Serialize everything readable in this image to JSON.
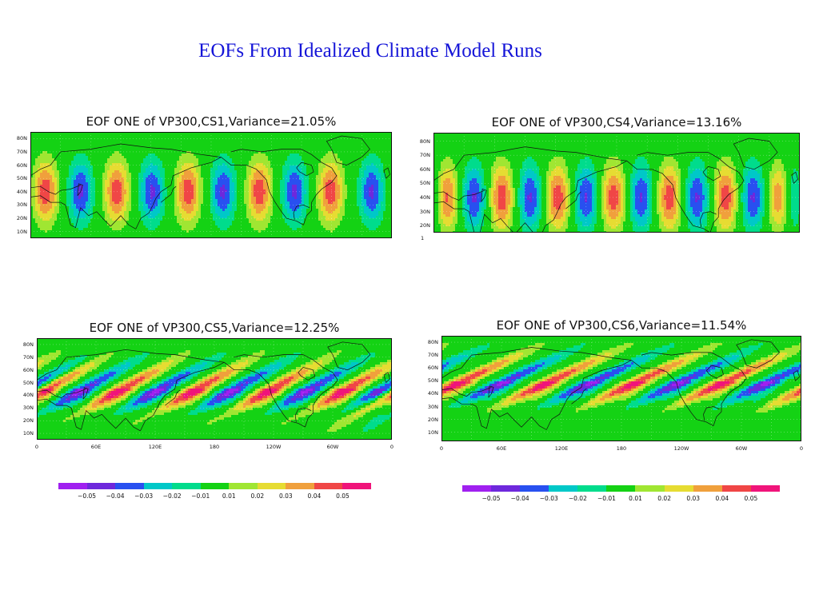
{
  "slide": {
    "title": "EOFs From  Idealized Climate Model Runs"
  },
  "colorbar": {
    "colors": [
      "#a020f0",
      "#6e28dc",
      "#2850f0",
      "#00c8c8",
      "#00dc8c",
      "#14d214",
      "#a0e632",
      "#e6dc32",
      "#f0a03c",
      "#f04646",
      "#f0147a"
    ],
    "labels": [
      "−0.05",
      "−0.04",
      "−0.03",
      "−0.02",
      "−0.01",
      "0.01",
      "0.02",
      "0.03",
      "0.04",
      "0.05"
    ]
  },
  "chart_data": [
    {
      "type": "heatmap",
      "title": "EOF ONE  of VP300,CS1,Variance=21.05%",
      "field": "VP300 EOF ONE",
      "experiment": "CS1",
      "variance_percent": 21.05,
      "y_tick_labels": [
        "80N",
        "70N",
        "60N",
        "50N",
        "40N",
        "30N",
        "20N",
        "10N"
      ],
      "x_tick_labels": [],
      "extra_label": "",
      "pattern": {
        "center_lat": 40,
        "tilt": 0,
        "centers": [
          {
            "lon": 15,
            "sign": 1,
            "amp": 0.045
          },
          {
            "lon": 50,
            "sign": -1,
            "amp": 0.04
          },
          {
            "lon": 86,
            "sign": 1,
            "amp": 0.045
          },
          {
            "lon": 121,
            "sign": -1,
            "amp": 0.04
          },
          {
            "lon": 157,
            "sign": 1,
            "amp": 0.045
          },
          {
            "lon": 192,
            "sign": -1,
            "amp": 0.04
          },
          {
            "lon": 228,
            "sign": 1,
            "amp": 0.045
          },
          {
            "lon": 263,
            "sign": -1,
            "amp": 0.04
          },
          {
            "lon": 299,
            "sign": 1,
            "amp": 0.045
          },
          {
            "lon": 340,
            "sign": -1,
            "amp": 0.04
          }
        ]
      }
    },
    {
      "type": "heatmap",
      "title": "EOF ONE  of VP300,CS4,Variance=13.16%",
      "field": "VP300 EOF ONE",
      "experiment": "CS4",
      "variance_percent": 13.16,
      "y_tick_labels": [
        "80N",
        "70N",
        "60N",
        "50N",
        "40N",
        "30N",
        "20N"
      ],
      "x_tick_labels": [],
      "extra_label": "1",
      "pattern": {
        "center_lat": 40,
        "tilt": 0,
        "centers": [
          {
            "lon": 12,
            "sign": 1,
            "amp": 0.045
          },
          {
            "lon": 40,
            "sign": -1,
            "amp": 0.04
          },
          {
            "lon": 67,
            "sign": 1,
            "amp": 0.045
          },
          {
            "lon": 95,
            "sign": -1,
            "amp": 0.04
          },
          {
            "lon": 122,
            "sign": 1,
            "amp": 0.045
          },
          {
            "lon": 150,
            "sign": -1,
            "amp": 0.04
          },
          {
            "lon": 177,
            "sign": 1,
            "amp": 0.045
          },
          {
            "lon": 204,
            "sign": -1,
            "amp": 0.04
          },
          {
            "lon": 232,
            "sign": 1,
            "amp": 0.045
          },
          {
            "lon": 259,
            "sign": -1,
            "amp": 0.04
          },
          {
            "lon": 287,
            "sign": 1,
            "amp": 0.045
          },
          {
            "lon": 314,
            "sign": -1,
            "amp": 0.04
          },
          {
            "lon": 341,
            "sign": 1,
            "amp": 0.045
          },
          {
            "lon": 355,
            "sign": -1,
            "amp": 0.04
          }
        ]
      }
    },
    {
      "type": "heatmap",
      "title": "EOF ONE  of VP300,CS5,Variance=12.25%",
      "field": "VP300 EOF ONE",
      "experiment": "CS5",
      "variance_percent": 12.25,
      "y_tick_labels": [
        "80N",
        "70N",
        "60N",
        "50N",
        "40N",
        "30N",
        "20N",
        "10N"
      ],
      "x_tick_labels": [
        "0",
        "60E",
        "120E",
        "180",
        "120W",
        "60W",
        "0"
      ],
      "extra_label": "",
      "pattern": {
        "center_lat": 45,
        "tilt": 2.5,
        "centers": [
          {
            "lon": 10,
            "sign": 1,
            "amp": 0.045
          },
          {
            "lon": 48,
            "sign": -1,
            "amp": 0.04
          },
          {
            "lon": 87,
            "sign": 1,
            "amp": 0.045
          },
          {
            "lon": 125,
            "sign": -1,
            "amp": 0.04
          },
          {
            "lon": 163,
            "sign": 1,
            "amp": 0.045
          },
          {
            "lon": 201,
            "sign": -1,
            "amp": 0.04
          },
          {
            "lon": 239,
            "sign": 1,
            "amp": 0.045
          },
          {
            "lon": 277,
            "sign": -1,
            "amp": 0.04
          },
          {
            "lon": 315,
            "sign": 1,
            "amp": 0.045
          },
          {
            "lon": 352,
            "sign": -1,
            "amp": 0.04
          }
        ]
      }
    },
    {
      "type": "heatmap",
      "title": "EOF ONE  of VP300,CS6,Variance=11.54%",
      "field": "VP300 EOF ONE",
      "experiment": "CS6",
      "variance_percent": 11.54,
      "y_tick_labels": [
        "80N",
        "70N",
        "60N",
        "50N",
        "40N",
        "30N",
        "20N",
        "10N"
      ],
      "x_tick_labels": [
        "0",
        "60E",
        "120E",
        "180",
        "120W",
        "60W",
        "0"
      ],
      "extra_label": "",
      "pattern": {
        "center_lat": 50,
        "tilt": 3,
        "centers": [
          {
            "lon": 22,
            "sign": 1,
            "amp": 0.045
          },
          {
            "lon": 65,
            "sign": -1,
            "amp": 0.04
          },
          {
            "lon": 110,
            "sign": 1,
            "amp": 0.045
          },
          {
            "lon": 154,
            "sign": -1,
            "amp": 0.04
          },
          {
            "lon": 198,
            "sign": 1,
            "amp": 0.045
          },
          {
            "lon": 242,
            "sign": -1,
            "amp": 0.04
          },
          {
            "lon": 286,
            "sign": 1,
            "amp": 0.045
          },
          {
            "lon": 330,
            "sign": -1,
            "amp": 0.04
          }
        ]
      }
    }
  ]
}
